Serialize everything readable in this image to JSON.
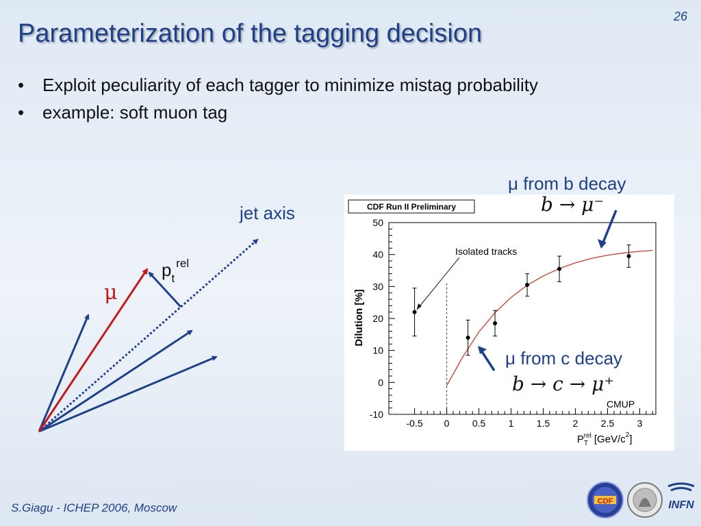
{
  "slide": {
    "number": "26",
    "title": "Parameterization of the tagging decision",
    "bullets": [
      "Exploit peculiarity of each tagger to minimize mistag probability",
      "example: soft muon tag"
    ],
    "footer": "S.Giagu - ICHEP 2006, Moscow",
    "logos": [
      "CDF",
      "INFN"
    ]
  },
  "diagram": {
    "jet_axis_label": "jet axis",
    "pt_rel_base": "p",
    "pt_rel_sub": "t",
    "pt_rel_sup": "rel",
    "mu_label": "μ"
  },
  "annotations": {
    "b_decay_label": "μ from b decay",
    "b_decay_formula": "b → μ⁻",
    "c_decay_label": "μ from c decay",
    "c_decay_formula": "b → c → μ⁺"
  },
  "chart_data": {
    "type": "scatter",
    "header_box": "CDF Run II Preliminary",
    "ylabel": "Dilution [%]",
    "xlabel_base": "P",
    "xlabel_sub": "T",
    "xlabel_sup": "rel",
    "xlabel_units": "[GeV/c",
    "xlabel_units_sup": "2",
    "xlabel_close": "]",
    "xlim": [
      -0.9,
      3.25
    ],
    "ylim": [
      -10,
      50
    ],
    "x_ticks": [
      "-0.5",
      "0",
      "0.5",
      "1",
      "1.5",
      "2",
      "2.5",
      "3"
    ],
    "y_ticks": [
      "-10",
      "0",
      "10",
      "20",
      "30",
      "40",
      "50"
    ],
    "annotation": "Isolated tracks",
    "inner_label": "CMUP",
    "colors": {
      "fit": "#d43a2a",
      "points": "#000000"
    },
    "points": [
      {
        "x": -0.5,
        "y": 22,
        "err": 7.5
      },
      {
        "x": 0.33,
        "y": 14,
        "err": 5.5
      },
      {
        "x": 0.75,
        "y": 18.5,
        "err": 4
      },
      {
        "x": 1.25,
        "y": 30.5,
        "err": 3.5
      },
      {
        "x": 1.75,
        "y": 35.5,
        "err": 4
      },
      {
        "x": 2.83,
        "y": 39.5,
        "err": 3.5
      }
    ],
    "fit": {
      "x": [
        0,
        0.25,
        0.5,
        0.75,
        1.0,
        1.25,
        1.5,
        1.75,
        2.0,
        2.25,
        2.5,
        2.75,
        3.0,
        3.2
      ],
      "y": [
        -1,
        8,
        15.8,
        21.8,
        26.6,
        30.4,
        33.3,
        35.6,
        37.4,
        38.8,
        39.8,
        40.5,
        41,
        41.3
      ]
    }
  }
}
